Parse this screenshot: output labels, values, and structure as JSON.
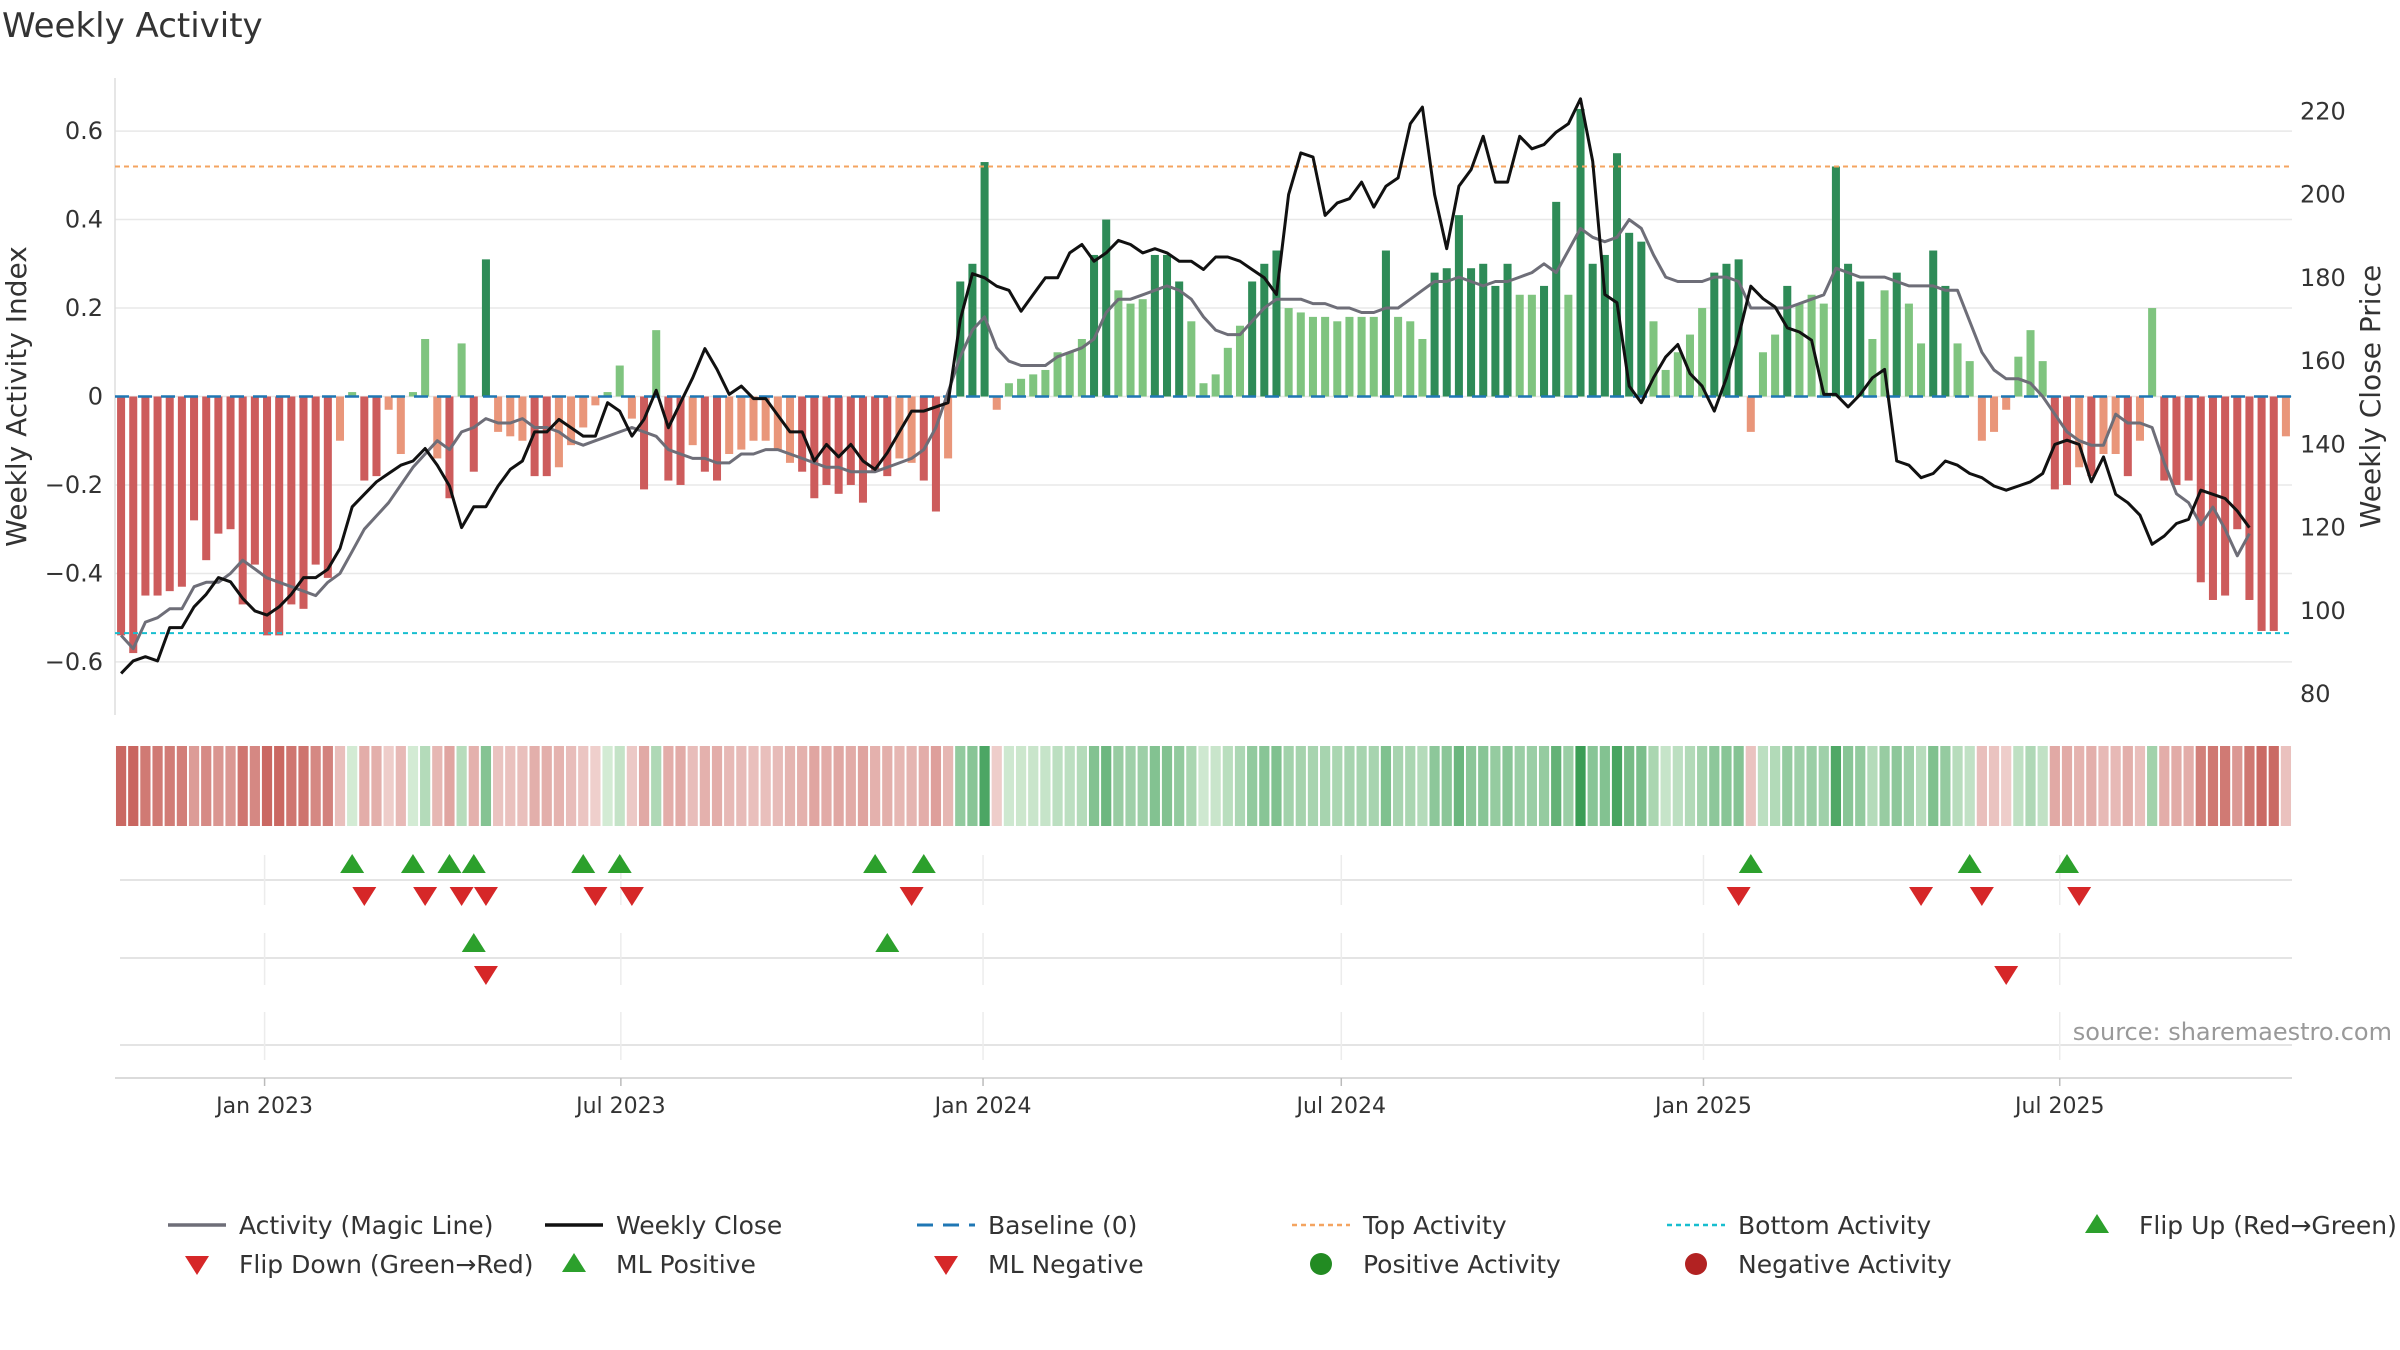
{
  "chart_data": {
    "type": "bar",
    "title": "Weekly Activity",
    "ylabel_left": "Weekly Activity Index",
    "ylabel_right": "Weekly Close Price",
    "ylim_left": [
      -0.72,
      0.72
    ],
    "ylim_right": [
      75,
      228
    ],
    "yticks_left": [
      -0.6,
      -0.4,
      -0.2,
      0,
      0.2,
      0.4,
      0.6
    ],
    "ytick_labels_left": [
      "−0.6",
      "−0.4",
      "−0.2",
      "0",
      "0.2",
      "0.4",
      "0.6"
    ],
    "yticks_right": [
      80,
      100,
      120,
      140,
      160,
      180,
      200,
      220
    ],
    "x_range": [
      "2022-10-17",
      "2025-10-27"
    ],
    "x_ticks": [
      {
        "date": "2023-01-01",
        "label": "Jan 2023"
      },
      {
        "date": "2023-07-01",
        "label": "Jul 2023"
      },
      {
        "date": "2024-01-01",
        "label": "Jan 2024"
      },
      {
        "date": "2024-07-01",
        "label": "Jul 2024"
      },
      {
        "date": "2025-01-01",
        "label": "Jan 2025"
      },
      {
        "date": "2025-07-01",
        "label": "Jul 2025"
      }
    ],
    "top_activity": 0.52,
    "bottom_activity": -0.535,
    "colors": {
      "pos_strong": "#2e8b57",
      "pos_weak": "#7fc47f",
      "neg_strong": "#cd5c5c",
      "neg_weak": "#e9967a",
      "magic_line": "#6e6e78",
      "close_line": "#111111",
      "baseline": "#1f77b4",
      "top_line": "#f4a460",
      "bottom_line": "#17becf",
      "marker_up": "#2ca02c",
      "marker_down": "#d62728"
    },
    "series": [
      {
        "name": "Activity",
        "values": [
          -0.54,
          -0.58,
          -0.45,
          -0.45,
          -0.44,
          -0.43,
          -0.28,
          -0.37,
          -0.31,
          -0.3,
          -0.47,
          -0.38,
          -0.54,
          -0.54,
          -0.47,
          -0.48,
          -0.38,
          -0.41,
          -0.1,
          0.01,
          -0.19,
          -0.18,
          -0.03,
          -0.13,
          0.01,
          0.13,
          -0.14,
          -0.23,
          0.12,
          -0.17,
          0.31,
          -0.08,
          -0.09,
          -0.1,
          -0.18,
          -0.18,
          -0.16,
          -0.11,
          -0.07,
          -0.02,
          0.01,
          0.07,
          -0.05,
          -0.21,
          0.15,
          -0.19,
          -0.2,
          -0.11,
          -0.17,
          -0.19,
          -0.13,
          -0.12,
          -0.1,
          -0.1,
          -0.12,
          -0.15,
          -0.17,
          -0.23,
          -0.2,
          -0.22,
          -0.2,
          -0.24,
          -0.17,
          -0.18,
          -0.14,
          -0.15,
          -0.19,
          -0.26,
          -0.14,
          0.26,
          0.3,
          0.53,
          -0.03,
          0.03,
          0.04,
          0.05,
          0.06,
          0.1,
          0.1,
          0.13,
          0.32,
          0.4,
          0.24,
          0.21,
          0.22,
          0.32,
          0.32,
          0.26,
          0.17,
          0.03,
          0.05,
          0.11,
          0.16,
          0.26,
          0.3,
          0.33,
          0.2,
          0.19,
          0.18,
          0.18,
          0.17,
          0.18,
          0.18,
          0.18,
          0.33,
          0.18,
          0.17,
          0.13,
          0.28,
          0.29,
          0.41,
          0.29,
          0.3,
          0.25,
          0.3,
          0.23,
          0.23,
          0.25,
          0.44,
          0.23,
          0.65,
          0.3,
          0.32,
          0.55,
          0.37,
          0.35,
          0.17,
          0.06,
          0.1,
          0.14,
          0.2,
          0.28,
          0.3,
          0.31,
          -0.08,
          0.1,
          0.14,
          0.25,
          0.21,
          0.23,
          0.21,
          0.52,
          0.3,
          0.26,
          0.13,
          0.24,
          0.28,
          0.21,
          0.12,
          0.33,
          0.25,
          0.12,
          0.08,
          -0.1,
          -0.08,
          -0.03,
          0.09,
          0.15,
          0.08,
          -0.21,
          -0.2,
          -0.16,
          -0.18,
          -0.13,
          -0.13,
          -0.18,
          -0.1,
          0.2,
          -0.19,
          -0.2,
          -0.19,
          -0.42,
          -0.46,
          -0.45,
          -0.3,
          -0.46,
          -0.53,
          -0.53,
          -0.09
        ]
      },
      {
        "name": "Activity (Magic Line)",
        "values": [
          -0.54,
          -0.57,
          -0.51,
          -0.5,
          -0.48,
          -0.48,
          -0.43,
          -0.42,
          -0.42,
          -0.4,
          -0.37,
          -0.39,
          -0.41,
          -0.42,
          -0.43,
          -0.44,
          -0.45,
          -0.42,
          -0.4,
          -0.35,
          -0.3,
          -0.27,
          -0.24,
          -0.2,
          -0.16,
          -0.13,
          -0.1,
          -0.12,
          -0.08,
          -0.07,
          -0.05,
          -0.06,
          -0.06,
          -0.05,
          -0.07,
          -0.07,
          -0.08,
          -0.1,
          -0.11,
          -0.1,
          -0.09,
          -0.08,
          -0.07,
          -0.08,
          -0.09,
          -0.12,
          -0.13,
          -0.14,
          -0.14,
          -0.15,
          -0.15,
          -0.13,
          -0.13,
          -0.12,
          -0.12,
          -0.13,
          -0.14,
          -0.15,
          -0.16,
          -0.16,
          -0.17,
          -0.17,
          -0.17,
          -0.16,
          -0.15,
          -0.14,
          -0.12,
          -0.07,
          0.01,
          0.09,
          0.15,
          0.18,
          0.11,
          0.08,
          0.07,
          0.07,
          0.07,
          0.09,
          0.1,
          0.11,
          0.13,
          0.19,
          0.22,
          0.22,
          0.23,
          0.24,
          0.25,
          0.24,
          0.22,
          0.18,
          0.15,
          0.14,
          0.14,
          0.17,
          0.2,
          0.22,
          0.22,
          0.22,
          0.21,
          0.21,
          0.2,
          0.2,
          0.19,
          0.19,
          0.2,
          0.2,
          0.22,
          0.24,
          0.26,
          0.26,
          0.27,
          0.26,
          0.25,
          0.26,
          0.26,
          0.27,
          0.28,
          0.3,
          0.28,
          0.33,
          0.38,
          0.36,
          0.35,
          0.36,
          0.4,
          0.38,
          0.32,
          0.27,
          0.26,
          0.26,
          0.26,
          0.27,
          0.27,
          0.26,
          0.2,
          0.2,
          0.2,
          0.2,
          0.21,
          0.22,
          0.23,
          0.29,
          0.28,
          0.27,
          0.27,
          0.27,
          0.26,
          0.25,
          0.25,
          0.25,
          0.24,
          0.24,
          0.17,
          0.1,
          0.06,
          0.04,
          0.04,
          0.03,
          -0.0,
          -0.04,
          -0.08,
          -0.1,
          -0.11,
          -0.11,
          -0.04,
          -0.06,
          -0.06,
          -0.07,
          -0.15,
          -0.22,
          -0.24,
          -0.29,
          -0.25,
          -0.3,
          -0.36,
          -0.31
        ]
      },
      {
        "name": "Weekly Close",
        "values": [
          85,
          88,
          89,
          88,
          96,
          96,
          101,
          104,
          108,
          107,
          103,
          100,
          99,
          101,
          104,
          108,
          108,
          110,
          115,
          125,
          128,
          131,
          133,
          135,
          136,
          139,
          135,
          130,
          120,
          125,
          125,
          130,
          134,
          136,
          143,
          143,
          146,
          144,
          142,
          142,
          150,
          148,
          142,
          146,
          153,
          144,
          150,
          156,
          163,
          158,
          152,
          154,
          151,
          151,
          147,
          143,
          143,
          136,
          140,
          137,
          140,
          136,
          134,
          138,
          143,
          148,
          148,
          149,
          150,
          170,
          181,
          180,
          178,
          177,
          172,
          176,
          180,
          180,
          186,
          188,
          184,
          186,
          189,
          188,
          186,
          187,
          186,
          184,
          184,
          182,
          185,
          185,
          184,
          182,
          180,
          176,
          200,
          210,
          209,
          195,
          198,
          199,
          203,
          197,
          202,
          204,
          217,
          221,
          200,
          187,
          202,
          206,
          214,
          203,
          203,
          214,
          211,
          212,
          215,
          217,
          223,
          208,
          176,
          174,
          154,
          150,
          156,
          161,
          164,
          157,
          154,
          148,
          156,
          166,
          178,
          175,
          173,
          168,
          167,
          165,
          152,
          152,
          149,
          152,
          156,
          158,
          136,
          135,
          132,
          133,
          136,
          135,
          133,
          132,
          130,
          129,
          130,
          131,
          133,
          140,
          141,
          140,
          131,
          137,
          128,
          126,
          123,
          116,
          118,
          121,
          122,
          129,
          128,
          127,
          124,
          120
        ]
      }
    ],
    "strip_values": [
      -0.54,
      -0.58,
      -0.45,
      -0.45,
      -0.44,
      -0.43,
      -0.28,
      -0.37,
      -0.31,
      -0.3,
      -0.47,
      -0.38,
      -0.54,
      -0.54,
      -0.47,
      -0.48,
      -0.38,
      -0.41,
      -0.1,
      0.01,
      -0.19,
      -0.18,
      -0.03,
      -0.13,
      0.01,
      0.13,
      -0.14,
      -0.23,
      0.12,
      -0.17,
      0.31,
      -0.08,
      -0.09,
      -0.1,
      -0.18,
      -0.18,
      -0.16,
      -0.11,
      -0.07,
      -0.02,
      0.01,
      0.07,
      -0.05,
      -0.21,
      0.15,
      -0.19,
      -0.2,
      -0.11,
      -0.17,
      -0.19,
      -0.13,
      -0.12,
      -0.1,
      -0.1,
      -0.12,
      -0.15,
      -0.17,
      -0.23,
      -0.2,
      -0.22,
      -0.2,
      -0.24,
      -0.17,
      -0.18,
      -0.14,
      -0.15,
      -0.19,
      -0.26,
      -0.14,
      0.26,
      0.3,
      0.53,
      -0.03,
      0.03,
      0.04,
      0.05,
      0.06,
      0.1,
      0.1,
      0.13,
      0.32,
      0.4,
      0.24,
      0.21,
      0.22,
      0.32,
      0.32,
      0.26,
      0.17,
      0.03,
      0.05,
      0.11,
      0.16,
      0.26,
      0.3,
      0.33,
      0.2,
      0.19,
      0.18,
      0.18,
      0.17,
      0.18,
      0.18,
      0.18,
      0.33,
      0.18,
      0.17,
      0.13,
      0.28,
      0.29,
      0.41,
      0.29,
      0.3,
      0.25,
      0.3,
      0.23,
      0.23,
      0.25,
      0.44,
      0.23,
      0.65,
      0.3,
      0.32,
      0.55,
      0.37,
      0.35,
      0.17,
      0.06,
      0.1,
      0.14,
      0.2,
      0.28,
      0.3,
      0.31,
      -0.08,
      0.1,
      0.14,
      0.25,
      0.21,
      0.23,
      0.21,
      0.52,
      0.3,
      0.26,
      0.13,
      0.24,
      0.28,
      0.21,
      0.12,
      0.33,
      0.25,
      0.12,
      0.08,
      -0.1,
      -0.08,
      -0.03,
      0.09,
      0.15,
      0.08,
      -0.21,
      -0.2,
      -0.16,
      -0.18,
      -0.13,
      -0.13,
      -0.18,
      -0.1,
      0.2,
      -0.19,
      -0.2,
      -0.19,
      -0.42,
      -0.46,
      -0.45,
      -0.3,
      -0.46,
      -0.53,
      -0.53,
      -0.09
    ],
    "flip_up_weeks": [
      19,
      24,
      27,
      29,
      38,
      41,
      62,
      66,
      134,
      152,
      160
    ],
    "flip_down_weeks": [
      20,
      25,
      28,
      30,
      39,
      42,
      65,
      133,
      148,
      153,
      161
    ],
    "ml_positive_weeks": [
      29,
      63
    ],
    "ml_negative_weeks": [
      30,
      155
    ],
    "source": "source: sharemaestro.com",
    "legend": [
      {
        "label": "Activity (Magic Line)",
        "symbol": "line",
        "color": "#6e6e78"
      },
      {
        "label": "Weekly Close",
        "symbol": "line",
        "color": "#111111"
      },
      {
        "label": "Baseline (0)",
        "symbol": "dash",
        "color": "#1f77b4"
      },
      {
        "label": "Top Activity",
        "symbol": "dot-line",
        "color": "#f4a460"
      },
      {
        "label": "Bottom Activity",
        "symbol": "dot-line",
        "color": "#17becf"
      },
      {
        "label": "Flip Up (Red→Green)",
        "symbol": "tri-up",
        "color": "#2ca02c"
      },
      {
        "label": "Flip Down (Green→Red)",
        "symbol": "tri-down",
        "color": "#d62728"
      },
      {
        "label": "ML Positive",
        "symbol": "tri-up",
        "color": "#2ca02c"
      },
      {
        "label": "ML Negative",
        "symbol": "tri-down",
        "color": "#d62728"
      },
      {
        "label": "Positive Activity",
        "symbol": "circle",
        "color": "#228b22"
      },
      {
        "label": "Negative Activity",
        "symbol": "circle",
        "color": "#b22222"
      }
    ]
  }
}
